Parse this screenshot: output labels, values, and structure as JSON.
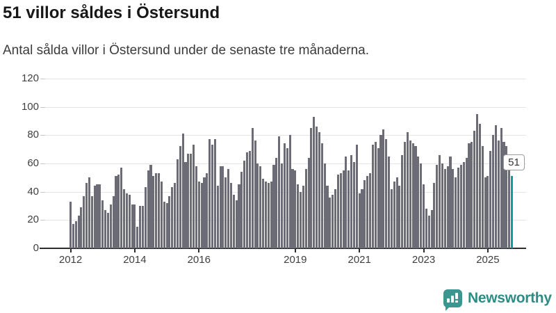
{
  "header": {
    "title": "51 villor såldes i Östersund",
    "subtitle": "Antal sålda villor i Östersund under de senaste tre månaderna."
  },
  "chart_data": {
    "type": "bar",
    "title": "51 villor såldes i Östersund",
    "subtitle": "Antal sålda villor i Östersund under de senaste tre månaderna.",
    "frequency": "monthly",
    "x_start": "2012-01",
    "x_end": "2025-10",
    "ylim": [
      0,
      120
    ],
    "grid": true,
    "legend": false,
    "y_ticks": [
      0,
      20,
      40,
      60,
      80,
      100,
      120
    ],
    "x_tick_labels": [
      "2012",
      "2014",
      "2016",
      "2019",
      "2021",
      "2023",
      "2025"
    ],
    "x_tick_month_indices": [
      0,
      24,
      48,
      84,
      108,
      132,
      156
    ],
    "bar_color": "#6c6c76",
    "values": [
      33,
      17,
      19,
      23,
      29,
      37,
      46,
      50,
      37,
      44,
      45,
      45,
      34,
      27,
      25,
      31,
      37,
      51,
      52,
      57,
      42,
      39,
      38,
      31,
      31,
      15,
      30,
      30,
      43,
      55,
      59,
      51,
      53,
      53,
      47,
      33,
      32,
      37,
      43,
      46,
      63,
      72,
      81,
      61,
      67,
      67,
      73,
      58,
      47,
      46,
      50,
      53,
      77,
      73,
      77,
      44,
      58,
      58,
      50,
      56,
      46,
      38,
      34,
      45,
      54,
      62,
      68,
      69,
      85,
      76,
      60,
      58,
      49,
      47,
      46,
      47,
      59,
      64,
      79,
      60,
      74,
      71,
      80,
      56,
      55,
      45,
      40,
      44,
      56,
      64,
      85,
      93,
      86,
      82,
      74,
      60,
      44,
      36,
      38,
      42,
      52,
      53,
      55,
      65,
      55,
      66,
      61,
      73,
      39,
      42,
      48,
      51,
      53,
      73,
      75,
      71,
      80,
      84,
      77,
      65,
      42,
      47,
      50,
      44,
      66,
      75,
      82,
      76,
      74,
      72,
      65,
      60,
      45,
      28,
      23,
      27,
      46,
      59,
      66,
      60,
      56,
      58,
      65,
      56,
      50,
      57,
      59,
      61,
      64,
      74,
      75,
      83,
      95,
      88,
      72,
      50,
      51,
      69,
      80,
      87,
      76,
      85,
      75,
      72,
      55,
      51
    ],
    "highlight": {
      "index": 165,
      "value": 51,
      "label": "51",
      "color": "#0f9ba3"
    }
  },
  "footer": {
    "brand": "Newsworthy",
    "brand_color": "#2e8c85",
    "icon": "newsworthy-chart-bubble-icon"
  }
}
